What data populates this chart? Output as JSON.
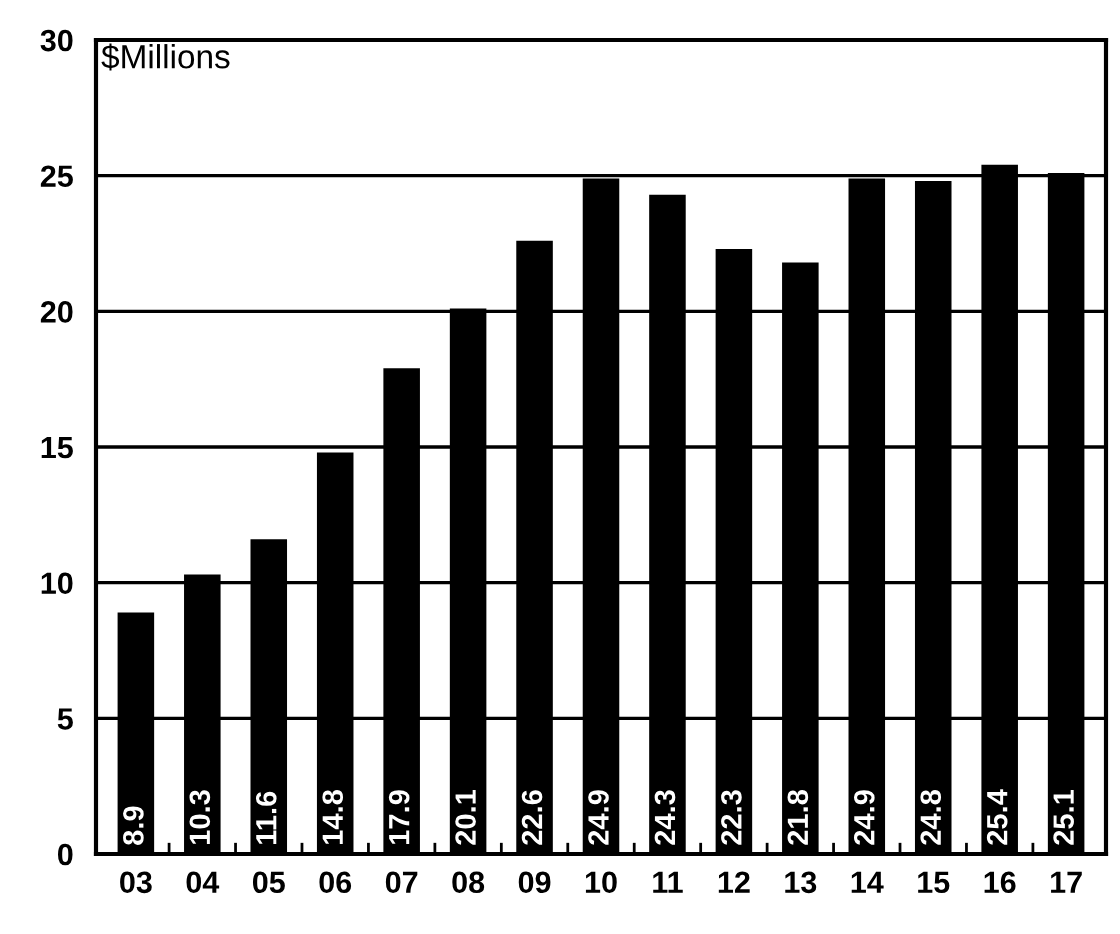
{
  "chart_data": {
    "type": "bar",
    "ylabel": "$Millions",
    "categories": [
      "03",
      "04",
      "05",
      "06",
      "07",
      "08",
      "09",
      "10",
      "11",
      "12",
      "13",
      "14",
      "15",
      "16",
      "17"
    ],
    "values": [
      8.9,
      10.3,
      11.6,
      14.8,
      17.9,
      20.1,
      22.6,
      24.9,
      24.3,
      22.3,
      21.8,
      24.9,
      24.8,
      25.4,
      25.1
    ],
    "color": "#000000",
    "ylim": [
      0,
      30
    ],
    "yticks": [
      0,
      5,
      10,
      15,
      20,
      25,
      30
    ],
    "grid": "y",
    "data_labels": true
  }
}
